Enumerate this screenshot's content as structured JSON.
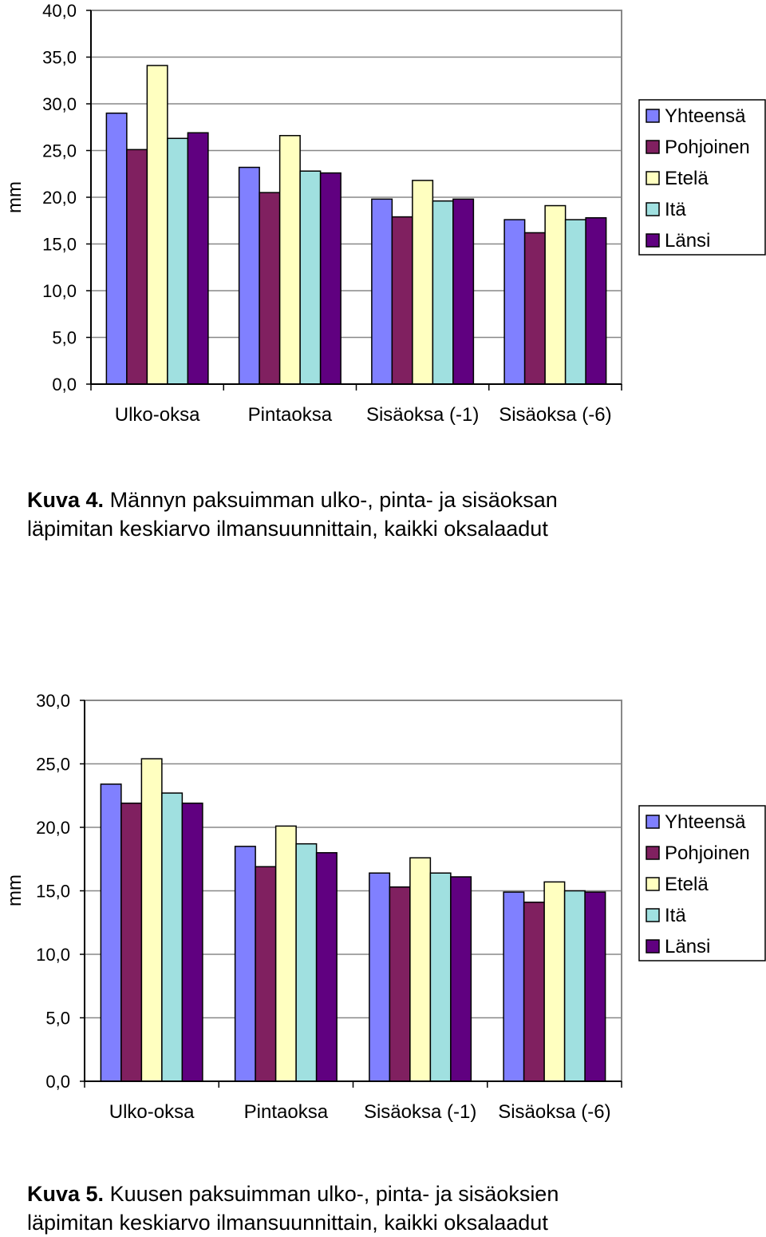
{
  "colors": {
    "Yhteensä": "#8080ff",
    "Pohjoinen": "#802060",
    "Etelä": "#ffffc0",
    "Itä": "#a0e0e0",
    "Länsi": "#600080"
  },
  "chart_data": [
    {
      "type": "bar",
      "categories": [
        "Ulko-oksa",
        "Pintaoksa",
        "Sisäoksa (-1)",
        "Sisäoksa (-6)"
      ],
      "series": [
        {
          "name": "Yhteensä",
          "values": [
            29.0,
            23.2,
            19.8,
            17.6
          ]
        },
        {
          "name": "Pohjoinen",
          "values": [
            25.1,
            20.5,
            17.9,
            16.2
          ]
        },
        {
          "name": "Etelä",
          "values": [
            34.1,
            26.6,
            21.8,
            19.1
          ]
        },
        {
          "name": "Itä",
          "values": [
            26.3,
            22.8,
            19.6,
            17.6
          ]
        },
        {
          "name": "Länsi",
          "values": [
            26.9,
            22.6,
            19.8,
            17.8
          ]
        }
      ],
      "ylabel": "mm",
      "ylim": [
        0,
        40
      ],
      "yticks": [
        "0,0",
        "5,0",
        "10,0",
        "15,0",
        "20,0",
        "25,0",
        "30,0",
        "35,0",
        "40,0"
      ],
      "grid": true,
      "legend": "right"
    },
    {
      "type": "bar",
      "categories": [
        "Ulko-oksa",
        "Pintaoksa",
        "Sisäoksa (-1)",
        "Sisäoksa (-6)"
      ],
      "series": [
        {
          "name": "Yhteensä",
          "values": [
            23.4,
            18.5,
            16.4,
            14.9
          ]
        },
        {
          "name": "Pohjoinen",
          "values": [
            21.9,
            16.9,
            15.3,
            14.1
          ]
        },
        {
          "name": "Etelä",
          "values": [
            25.4,
            20.1,
            17.6,
            15.7
          ]
        },
        {
          "name": "Itä",
          "values": [
            22.7,
            18.7,
            16.4,
            15.0
          ]
        },
        {
          "name": "Länsi",
          "values": [
            21.9,
            18.0,
            16.1,
            14.9
          ]
        }
      ],
      "ylabel": "mm",
      "ylim": [
        0,
        30
      ],
      "yticks": [
        "0,0",
        "5,0",
        "10,0",
        "15,0",
        "20,0",
        "25,0",
        "30,0"
      ],
      "grid": true,
      "legend": "right"
    }
  ],
  "captions": [
    {
      "label": "Kuva 4.",
      "line1": "Männyn paksuimman ulko-, pinta- ja sisäoksan",
      "line2": "läpimitan keskiarvo ilmansuunnittain, kaikki oksalaadut"
    },
    {
      "label": "Kuva 5.",
      "line1": "Kuusen paksuimman ulko-, pinta- ja sisäoksien",
      "line2": "läpimitan keskiarvo ilmansuunnittain, kaikki oksalaadut"
    }
  ]
}
